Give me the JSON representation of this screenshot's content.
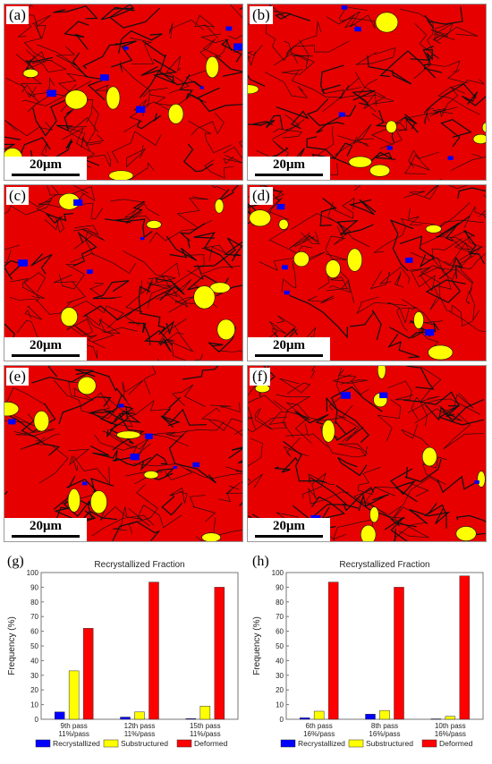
{
  "panels": [
    {
      "label": "(a)",
      "scale": "20μm"
    },
    {
      "label": "(b)",
      "scale": "20μm"
    },
    {
      "label": "(c)",
      "scale": "20μm"
    },
    {
      "label": "(d)",
      "scale": "20μm"
    },
    {
      "label": "(e)",
      "scale": "20μm"
    },
    {
      "label": "(f)",
      "scale": "20μm"
    }
  ],
  "colors": {
    "recrystallized": "#0000ff",
    "substructured": "#ffff00",
    "deformed": "#ff0000"
  },
  "chart_data": [
    {
      "type": "bar",
      "panel_label": "(g)",
      "title": "Recrystallized Fraction",
      "ylabel": "Frequency (%)",
      "xlabel": "",
      "ylim": [
        0,
        100
      ],
      "yticks": [
        "0",
        "10",
        "20",
        "30",
        "40",
        "50",
        "60",
        "70",
        "80",
        "90",
        "100"
      ],
      "categories": [
        "9th pass\n11%/pass",
        "12th pass\n11%/pass",
        "15th pass\n11%/pass"
      ],
      "series": [
        {
          "name": "Recrystallized",
          "color": "#0000ff",
          "values": [
            5,
            1.5,
            0.5
          ]
        },
        {
          "name": "Substructured",
          "color": "#ffff00",
          "values": [
            33,
            5,
            9
          ]
        },
        {
          "name": "Deformed",
          "color": "#ff0000",
          "values": [
            62,
            93.5,
            90
          ]
        }
      ],
      "legend": "bottom"
    },
    {
      "type": "bar",
      "panel_label": "(h)",
      "title": "Recrystallized Fraction",
      "ylabel": "Frequency (%)",
      "xlabel": "",
      "ylim": [
        0,
        100
      ],
      "yticks": [
        "0",
        "10",
        "20",
        "30",
        "40",
        "50",
        "60",
        "70",
        "80",
        "90",
        "100"
      ],
      "categories": [
        "6th pass\n16%/pass",
        "8th pass\n16%/pass",
        "10th pass\n16%/pass"
      ],
      "series": [
        {
          "name": "Recrystallized",
          "color": "#0000ff",
          "values": [
            1,
            3.5,
            0.3
          ]
        },
        {
          "name": "Substructured",
          "color": "#ffff00",
          "values": [
            5.5,
            6,
            2
          ]
        },
        {
          "name": "Deformed",
          "color": "#ff0000",
          "values": [
            93.5,
            90,
            97.7
          ]
        }
      ],
      "legend": "bottom"
    }
  ]
}
